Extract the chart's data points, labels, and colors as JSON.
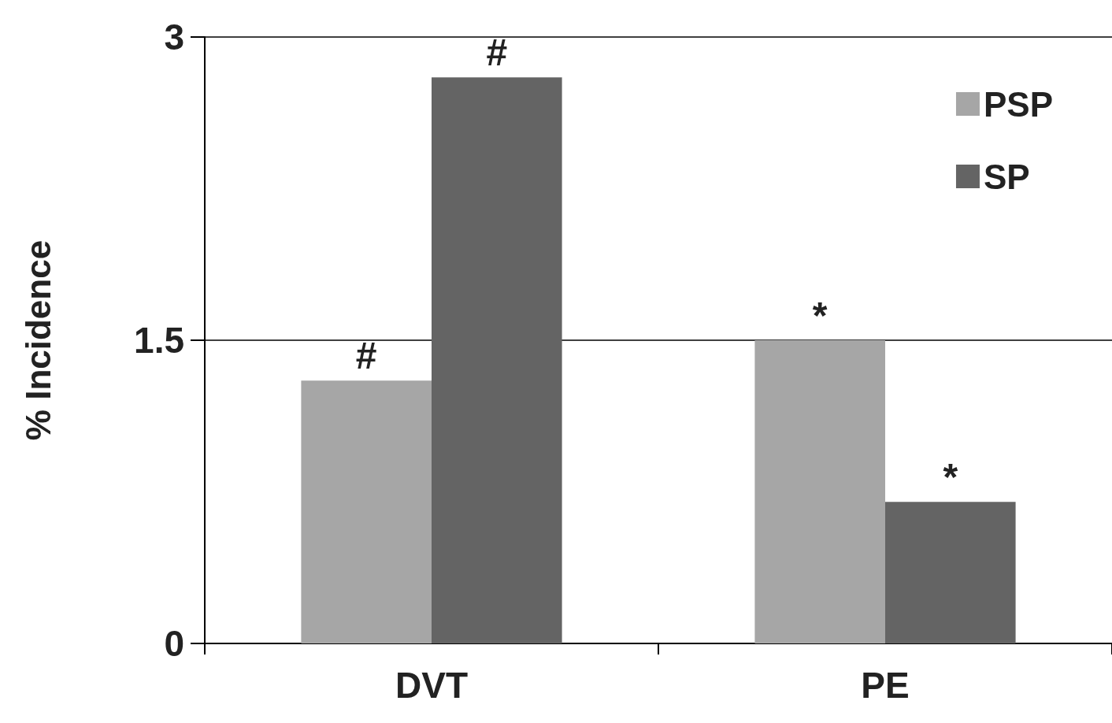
{
  "chart_data": {
    "type": "bar",
    "ylabel": "% Incidence",
    "categories": [
      "DVT",
      "PE"
    ],
    "series": [
      {
        "name": "PSP",
        "color": "#a6a6a6",
        "values": [
          1.3,
          1.5
        ]
      },
      {
        "name": "SP",
        "color": "#646464",
        "values": [
          2.8,
          0.7
        ]
      }
    ],
    "ylim": [
      0,
      3
    ],
    "yticks": [
      0,
      1.5,
      3
    ],
    "grid": "y",
    "legend": "top right",
    "annotations": [
      {
        "text": "#",
        "x": "DVT",
        "y": 1.3
      },
      {
        "text": "#",
        "x": "DVT",
        "y": 2.8
      },
      {
        "text": "*",
        "x": "PE",
        "y": 1.5
      },
      {
        "text": "*",
        "x": "PE",
        "y": 0.7
      }
    ]
  }
}
